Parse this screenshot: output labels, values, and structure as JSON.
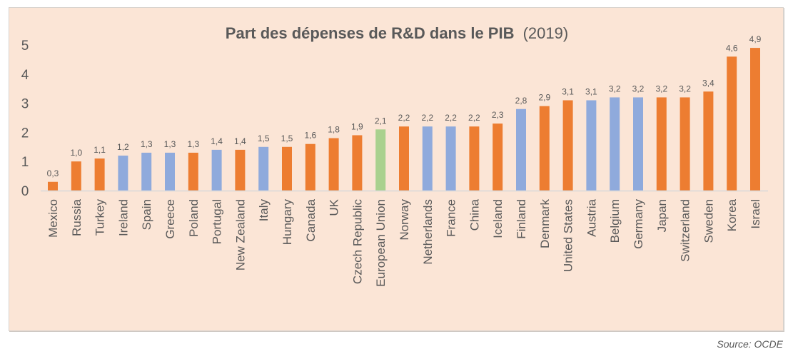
{
  "chart_data": {
    "type": "bar",
    "title": "Part des dépenses de R&D dans le PIB",
    "title_suffix": "(2019)",
    "xlabel": "",
    "ylabel": "",
    "ylim": [
      0,
      5
    ],
    "yticks": [
      "0",
      "1",
      "2",
      "3",
      "4",
      "5"
    ],
    "grid": false,
    "legend": "none",
    "categories": [
      "Mexico",
      "Russia",
      "Turkey",
      "Ireland",
      "Spain",
      "Greece",
      "Poland",
      "Portugal",
      "New Zealand",
      "Italy",
      "Hungary",
      "Canada",
      "UK",
      "Czech Republic",
      "European Union",
      "Norway",
      "Netherlands",
      "France",
      "China",
      "Iceland",
      "Finland",
      "Denmark",
      "United States",
      "Austria",
      "Belgium",
      "Germany",
      "Japan",
      "Switzerland",
      "Sweden",
      "Korea",
      "Israel"
    ],
    "values": [
      0.3,
      1.0,
      1.1,
      1.2,
      1.3,
      1.3,
      1.3,
      1.4,
      1.4,
      1.5,
      1.5,
      1.6,
      1.8,
      1.9,
      2.1,
      2.2,
      2.2,
      2.2,
      2.2,
      2.3,
      2.8,
      2.9,
      3.1,
      3.1,
      3.2,
      3.2,
      3.2,
      3.2,
      3.4,
      4.6,
      4.9
    ],
    "data_labels": [
      "0,3",
      "1,0",
      "1,1",
      "1,2",
      "1,3",
      "1,3",
      "1,3",
      "1,4",
      "1,4",
      "1,5",
      "1,5",
      "1,6",
      "1,8",
      "1,9",
      "2,1",
      "2,2",
      "2,2",
      "2,2",
      "2,2",
      "2,3",
      "2,8",
      "2,9",
      "3,1",
      "3,1",
      "3,2",
      "3,2",
      "3,2",
      "3,2",
      "3,4",
      "4,6",
      "4,9"
    ],
    "bar_groups": [
      "orange",
      "orange",
      "orange",
      "blue",
      "blue",
      "blue",
      "orange",
      "blue",
      "orange",
      "blue",
      "orange",
      "orange",
      "orange",
      "orange",
      "green",
      "orange",
      "blue",
      "blue",
      "orange",
      "orange",
      "blue",
      "orange",
      "orange",
      "blue",
      "blue",
      "blue",
      "orange",
      "orange",
      "orange",
      "orange",
      "orange"
    ],
    "colors": {
      "orange": "#ed7d31",
      "blue": "#8faadc",
      "green": "#a9d18e"
    }
  },
  "source": "Source: OCDE",
  "colors": {
    "background": "#fbe5d6",
    "text": "#595959",
    "axis": "#d9d9d9"
  }
}
